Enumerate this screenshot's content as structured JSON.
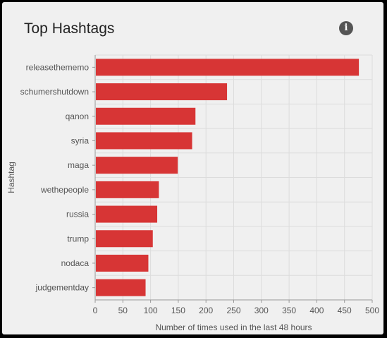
{
  "header": {
    "title": "Top Hashtags",
    "info_icon": "info-icon",
    "info_glyph": "i"
  },
  "colors": {
    "bar": "#d73535",
    "grid": "#dcdcdc",
    "axis": "#999999",
    "panel": "#f0f0f0"
  },
  "chart_data": {
    "type": "bar",
    "orientation": "horizontal",
    "categories": [
      "releasethememo",
      "schumershutdown",
      "qanon",
      "syria",
      "maga",
      "wethepeople",
      "russia",
      "trump",
      "nodaca",
      "judgementday"
    ],
    "values": [
      476,
      238,
      181,
      175,
      149,
      115,
      112,
      104,
      96,
      91
    ],
    "xlabel": "Number of times used in the last 48 hours",
    "ylabel": "Hashtag",
    "xlim": [
      0,
      500
    ],
    "xticks": [
      0,
      50,
      100,
      150,
      200,
      250,
      300,
      350,
      400,
      450,
      500
    ],
    "grid": true,
    "legend": "none"
  }
}
